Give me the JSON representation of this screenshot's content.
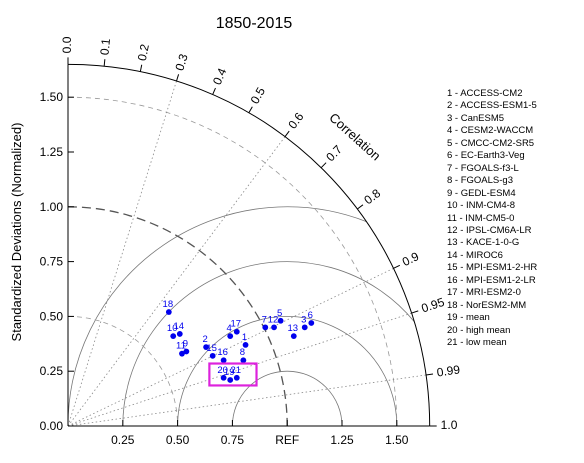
{
  "chart_data": {
    "type": "scatter",
    "subtype": "taylor_diagram",
    "title": "1850-2015",
    "ylabel": "Standardized Deviations (Normalized)",
    "angular_label": "Correlation",
    "xlim": [
      0,
      1.65
    ],
    "ylim": [
      0,
      1.65
    ],
    "x_ticks": [
      {
        "v": 0.25,
        "label": "0.25"
      },
      {
        "v": 0.5,
        "label": "0.50"
      },
      {
        "v": 0.75,
        "label": "0.75"
      },
      {
        "v": 1.0,
        "label": "REF"
      },
      {
        "v": 1.25,
        "label": "1.25"
      },
      {
        "v": 1.5,
        "label": "1.50"
      }
    ],
    "y_ticks": [
      {
        "v": 0.0,
        "label": "0.00"
      },
      {
        "v": 0.25,
        "label": "0.25"
      },
      {
        "v": 0.5,
        "label": "0.50"
      },
      {
        "v": 0.75,
        "label": "0.75"
      },
      {
        "v": 1.0,
        "label": "1.00"
      },
      {
        "v": 1.25,
        "label": "1.25"
      },
      {
        "v": 1.5,
        "label": "1.50"
      }
    ],
    "correlation_ticks": [
      {
        "r": 0.0,
        "label": "0.0"
      },
      {
        "r": 0.1,
        "label": "0.1"
      },
      {
        "r": 0.2,
        "label": "0.2"
      },
      {
        "r": 0.3,
        "label": "0.3"
      },
      {
        "r": 0.4,
        "label": "0.4"
      },
      {
        "r": 0.5,
        "label": "0.5"
      },
      {
        "r": 0.6,
        "label": "0.6"
      },
      {
        "r": 0.7,
        "label": "0.7"
      },
      {
        "r": 0.8,
        "label": "0.8"
      },
      {
        "r": 0.9,
        "label": "0.9"
      },
      {
        "r": 0.95,
        "label": "0.95"
      },
      {
        "r": 0.99,
        "label": "0.99"
      },
      {
        "r": 1.0,
        "label": "1.0"
      }
    ],
    "correlation_rays": [
      0.3,
      0.6,
      0.9,
      0.95,
      0.99
    ],
    "std_arcs_dashed": [
      0.5,
      1.5
    ],
    "std_arc_ref_longdash": 1.0,
    "rms_arcs": [
      0.25,
      0.5,
      0.75,
      1.0
    ],
    "marker_color": "#0000ee",
    "points": [
      {
        "id": "1",
        "x": 0.81,
        "y": 0.37
      },
      {
        "id": "2",
        "x": 0.63,
        "y": 0.36
      },
      {
        "id": "3",
        "x": 1.08,
        "y": 0.45
      },
      {
        "id": "4",
        "x": 0.74,
        "y": 0.41
      },
      {
        "id": "5",
        "x": 0.97,
        "y": 0.48
      },
      {
        "id": "6",
        "x": 1.11,
        "y": 0.47
      },
      {
        "id": "7",
        "x": 0.9,
        "y": 0.45
      },
      {
        "id": "8",
        "x": 0.8,
        "y": 0.3
      },
      {
        "id": "9",
        "x": 0.54,
        "y": 0.34
      },
      {
        "id": "10",
        "x": 0.48,
        "y": 0.41
      },
      {
        "id": "11",
        "x": 0.52,
        "y": 0.33
      },
      {
        "id": "12",
        "x": 0.94,
        "y": 0.45
      },
      {
        "id": "13",
        "x": 1.03,
        "y": 0.41
      },
      {
        "id": "14",
        "x": 0.51,
        "y": 0.42
      },
      {
        "id": "15",
        "x": 0.66,
        "y": 0.32
      },
      {
        "id": "16",
        "x": 0.71,
        "y": 0.3
      },
      {
        "id": "17",
        "x": 0.77,
        "y": 0.43
      },
      {
        "id": "18",
        "x": 0.46,
        "y": 0.52
      },
      {
        "id": "19",
        "x": 0.74,
        "y": 0.21
      },
      {
        "id": "20",
        "x": 0.71,
        "y": 0.22
      },
      {
        "id": "21",
        "x": 0.77,
        "y": 0.22
      }
    ],
    "highlight_box": {
      "x": [
        0.645,
        0.86
      ],
      "y": [
        0.185,
        0.285
      ],
      "color": "#dd22dd"
    },
    "legend": [
      "1 - ACCESS-CM2",
      "2 - ACCESS-ESM1-5",
      "3 - CanESM5",
      "4 - CESM2-WACCM",
      "5 - CMCC-CM2-SR5",
      "6 - EC-Earth3-Veg",
      "7 - FGOALS-f3-L",
      "8 - FGOALS-g3",
      "9 - GEDL-ESM4",
      "10 - INM-CM4-8",
      "11 - INM-CM5-0",
      "12 - IPSL-CM6A-LR",
      "13 - KACE-1-0-G",
      "14 - MIROC6",
      "15 - MPI-ESM1-2-HR",
      "16 - MPI-ESM1-2-LR",
      "17 - MRI-ESM2-0",
      "18 - NorESM2-MM",
      "19 - mean",
      "20 - high mean",
      "21 - low mean"
    ],
    "legend_position": "right"
  }
}
